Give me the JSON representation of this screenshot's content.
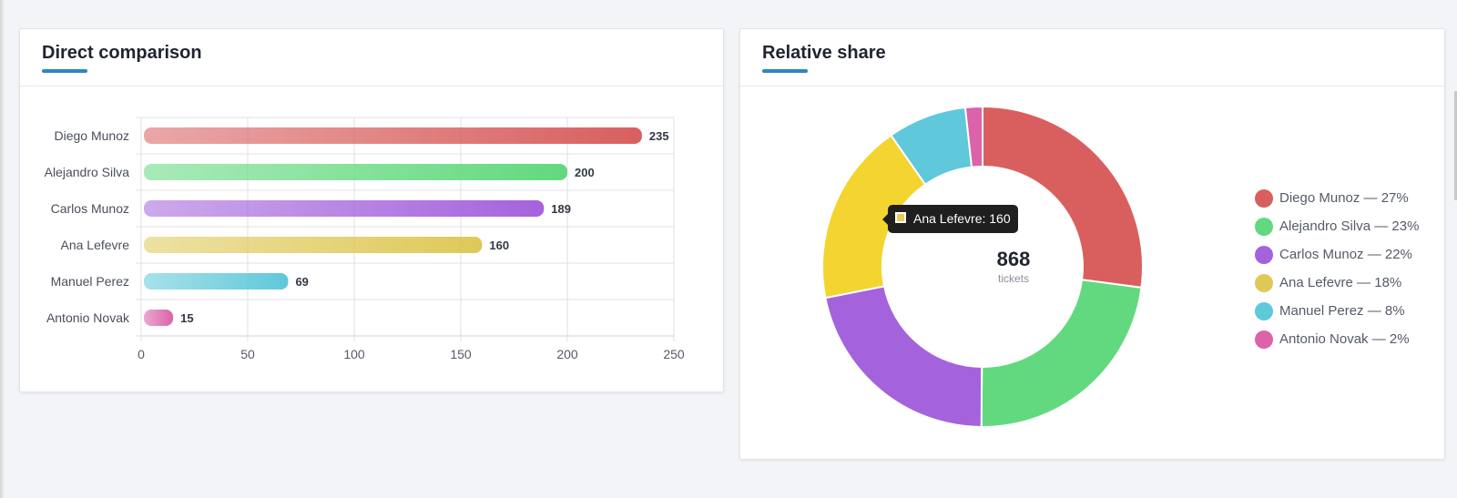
{
  "bar_card": {
    "title": "Direct comparison"
  },
  "donut_card": {
    "title": "Relative share",
    "center_value": "868",
    "center_label": "tickets",
    "tooltip": {
      "text": "Ana Lefevre: 160",
      "color": "#e6cd5a"
    },
    "legend": [
      {
        "label": "Diego Munoz — 27%",
        "color": "#d95f5f"
      },
      {
        "label": "Alejandro Silva — 23%",
        "color": "#62d97e"
      },
      {
        "label": "Carlos Munoz — 22%",
        "color": "#a463dc"
      },
      {
        "label": "Ana Lefevre — 18%",
        "color": "#dec958"
      },
      {
        "label": "Manuel Perez — 8%",
        "color": "#5fc8da"
      },
      {
        "label": "Antonio Novak — 2%",
        "color": "#dc62aa"
      }
    ]
  },
  "chart_data": [
    {
      "type": "bar",
      "orientation": "horizontal",
      "title": "Direct comparison",
      "categories": [
        "Diego Munoz",
        "Alejandro Silva",
        "Carlos Munoz",
        "Ana Lefevre",
        "Manuel Perez",
        "Antonio Novak"
      ],
      "values": [
        235,
        200,
        189,
        160,
        69,
        15
      ],
      "xlim": [
        0,
        250
      ],
      "xticks": [
        0,
        50,
        100,
        150,
        200,
        250
      ],
      "grid": true,
      "data_labels": true,
      "colors": [
        "#d95f5f",
        "#62d97e",
        "#a463dc",
        "#dec958",
        "#5fc8da",
        "#dc62aa"
      ]
    },
    {
      "type": "pie",
      "variant": "donut",
      "title": "Relative share",
      "categories": [
        "Diego Munoz",
        "Alejandro Silva",
        "Carlos Munoz",
        "Ana Lefevre",
        "Manuel Perez",
        "Antonio Novak"
      ],
      "values": [
        235,
        200,
        189,
        160,
        69,
        15
      ],
      "total": 868,
      "legend": "right",
      "colors": [
        "#d95f5f",
        "#62d97e",
        "#a463dc",
        "#f4d42f",
        "#5fc8da",
        "#dc62aa"
      ]
    }
  ]
}
